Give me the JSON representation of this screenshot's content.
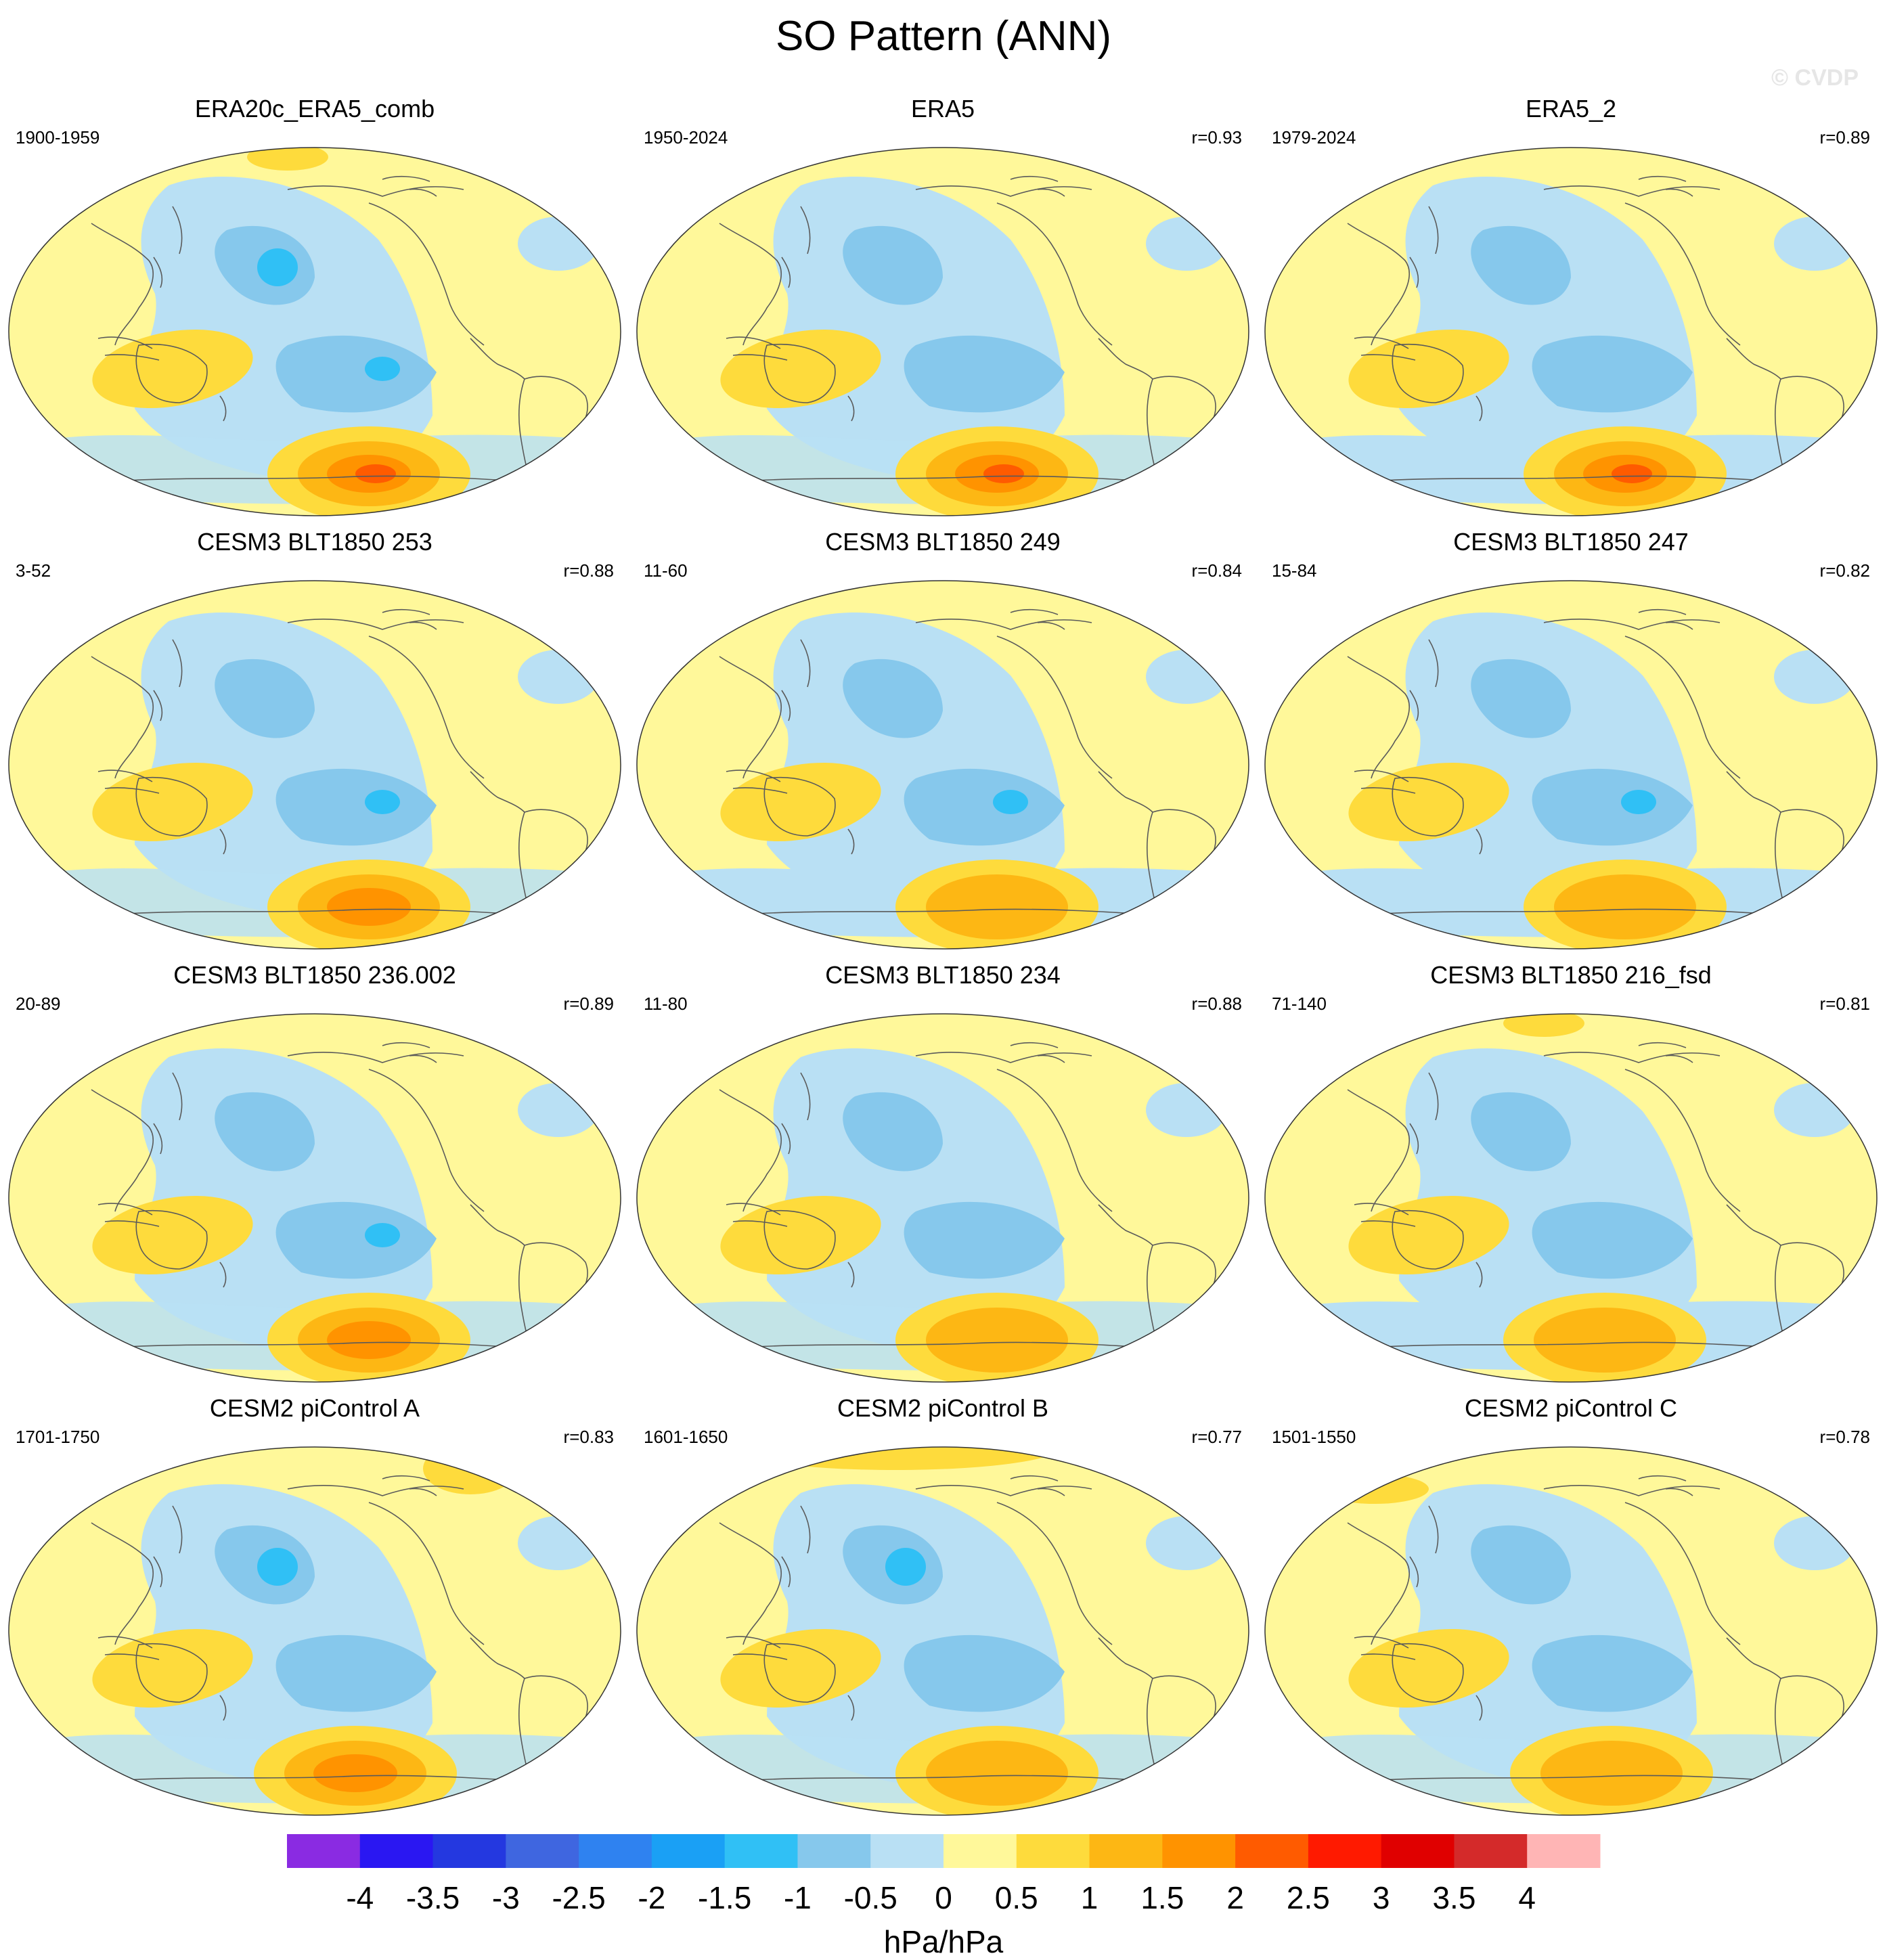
{
  "title": "SO Pattern (ANN)",
  "watermark": "© CVDP",
  "chart_data": {
    "type": "heatmap",
    "projection": "Robinson (global, Pacific-centered)",
    "panels": [
      {
        "title": "ERA20c_ERA5_comb",
        "years": "1900-1959",
        "r": ""
      },
      {
        "title": "ERA5",
        "years": "1950-2024",
        "r": "r=0.93"
      },
      {
        "title": "ERA5_2",
        "years": "1979-2024",
        "r": "r=0.89"
      },
      {
        "title": "CESM3 BLT1850 253",
        "years": "3-52",
        "r": "r=0.88"
      },
      {
        "title": "CESM3 BLT1850 249",
        "years": "11-60",
        "r": "r=0.84"
      },
      {
        "title": "CESM3 BLT1850 247",
        "years": "15-84",
        "r": "r=0.82"
      },
      {
        "title": "CESM3 BLT1850 236.002",
        "years": "20-89",
        "r": "r=0.89"
      },
      {
        "title": "CESM3 BLT1850 234",
        "years": "11-80",
        "r": "r=0.88"
      },
      {
        "title": "CESM3 BLT1850 216_fsd",
        "years": "71-140",
        "r": "r=0.81"
      },
      {
        "title": "CESM2 piControl A",
        "years": "1701-1750",
        "r": "r=0.83"
      },
      {
        "title": "CESM2 piControl B",
        "years": "1601-1650",
        "r": "r=0.77"
      },
      {
        "title": "CESM2 piControl C",
        "years": "1501-1550",
        "r": "r=0.78"
      }
    ],
    "colorbar": {
      "ticks": [
        "-4",
        "-3.5",
        "-3",
        "-2.5",
        "-2",
        "-1.5",
        "-1",
        "-0.5",
        "0",
        "0.5",
        "1",
        "1.5",
        "2",
        "2.5",
        "3",
        "3.5",
        "4"
      ],
      "colors": [
        "#8a2be2",
        "#2a17f2",
        "#2438e0",
        "#3f66e0",
        "#2f82f0",
        "#1aa0f5",
        "#30c0f5",
        "#86c8ec",
        "#b9e0f4",
        "#fff89a",
        "#fedb3c",
        "#fdb714",
        "#ff9300",
        "#ff5b00",
        "#ff1a00",
        "#e00000",
        "#d42a2a",
        "#ffb5b5"
      ],
      "units": "hPa/hPa"
    },
    "levels": {
      "pos1": "#fff89a",
      "pos2": "#fedb3c",
      "pos3": "#fdb714",
      "pos4": "#ff9300",
      "pos5": "#ff5b00",
      "neg1": "#b9e0f4",
      "neg2": "#86c8ec",
      "neg3": "#30c0f5"
    }
  }
}
